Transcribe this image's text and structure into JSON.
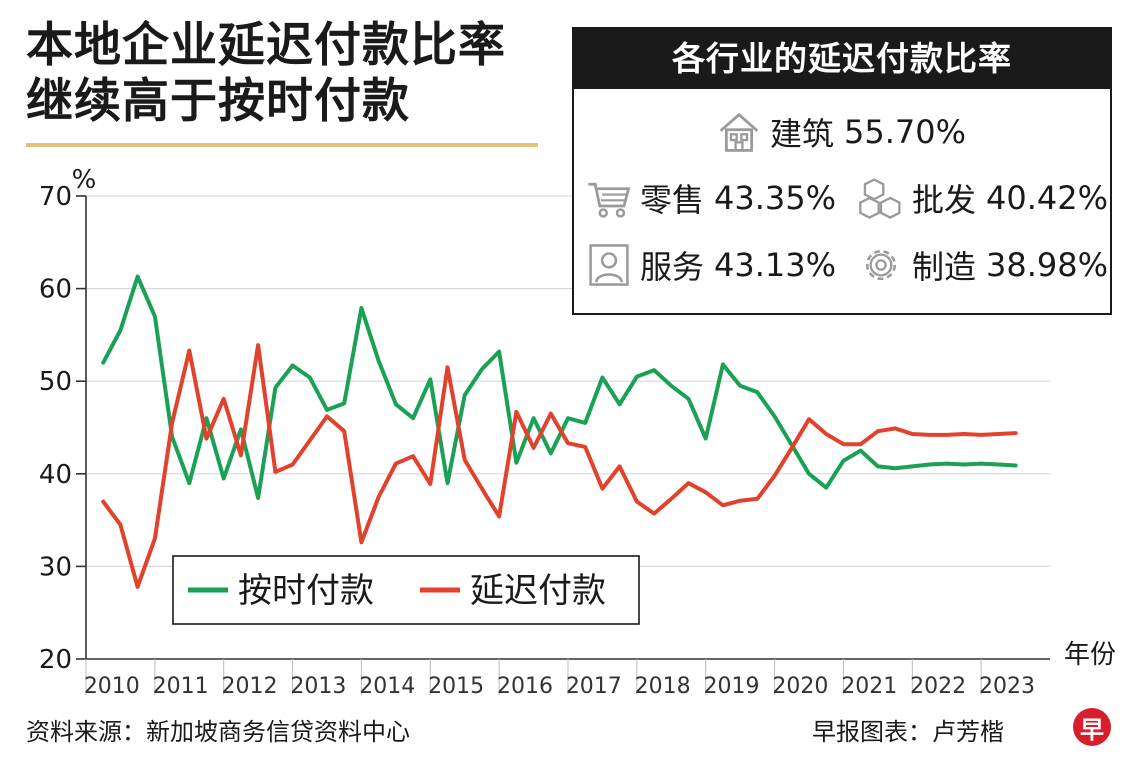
{
  "title": {
    "line1": "本地企业延迟付款比率",
    "line2": "继续高于按时付款"
  },
  "infobox": {
    "title": "各行业的延迟付款比率",
    "industries": [
      {
        "name": "建筑",
        "value": "55.70%",
        "icon": "house-icon"
      },
      {
        "name": "零售",
        "value": "43.35%",
        "icon": "shopping-cart-icon"
      },
      {
        "name": "批发",
        "value": "40.42%",
        "icon": "boxes-icon"
      },
      {
        "name": "服务",
        "value": "43.13%",
        "icon": "person-icon"
      },
      {
        "name": "制造",
        "value": "38.98%",
        "icon": "gear-icon"
      }
    ]
  },
  "source": "资料来源：新加坡商务信贷资料中心",
  "credit": "早报图表：卢芳楷",
  "logo_text": "早",
  "colors": {
    "on_time": "#1aa155",
    "late": "#e2412c",
    "grid": "#d9d9d9",
    "axis": "#333333"
  },
  "chart_data": {
    "type": "line",
    "ylabel": "%",
    "xlabel": "年份",
    "ylim": [
      20,
      70
    ],
    "yticks": [
      20,
      30,
      40,
      50,
      60,
      70
    ],
    "xlim": [
      2009.75,
      2023.75
    ],
    "year_labels": [
      "2010",
      "2011",
      "2012",
      "2013",
      "2014",
      "2015",
      "2016",
      "2017",
      "2018",
      "2019",
      "2020",
      "2021",
      "2022",
      "2023"
    ],
    "legend": "bottom-left",
    "series": [
      {
        "name": "按时付款",
        "color": "#1aa155",
        "x": [
          2010.0,
          2010.25,
          2010.5,
          2010.75,
          2011.0,
          2011.25,
          2011.5,
          2011.75,
          2012.0,
          2012.25,
          2012.5,
          2012.75,
          2013.0,
          2013.25,
          2013.5,
          2013.75,
          2014.0,
          2014.25,
          2014.5,
          2014.75,
          2015.0,
          2015.25,
          2015.5,
          2015.75,
          2016.0,
          2016.25,
          2016.5,
          2016.75,
          2017.0,
          2017.25,
          2017.5,
          2017.75,
          2018.0,
          2018.25,
          2018.5,
          2018.75,
          2019.0,
          2019.25,
          2019.5,
          2019.75,
          2020.0,
          2020.25,
          2020.5,
          2020.75,
          2021.0,
          2021.25,
          2021.5,
          2021.75,
          2022.0,
          2022.25,
          2022.5,
          2022.75,
          2023.0,
          2023.25
        ],
        "y": [
          52.0,
          55.5,
          61.3,
          57.0,
          44.0,
          39.0,
          46.0,
          39.5,
          44.8,
          37.4,
          49.3,
          51.7,
          50.4,
          46.9,
          47.6,
          57.9,
          52.2,
          47.5,
          46.0,
          50.2,
          39.0,
          48.5,
          51.3,
          53.2,
          41.2,
          46.0,
          42.2,
          46.0,
          45.5,
          50.4,
          47.5,
          50.5,
          51.2,
          49.5,
          48.1,
          43.8,
          51.8,
          49.5,
          48.8,
          46.2,
          43.1,
          40.0,
          38.5,
          41.4,
          42.5,
          40.8,
          40.6,
          40.8,
          41.0,
          41.1,
          41.0,
          41.1,
          41.0,
          40.9
        ]
      },
      {
        "name": "延迟付款",
        "color": "#e2412c",
        "x": [
          2010.0,
          2010.25,
          2010.5,
          2010.75,
          2011.0,
          2011.25,
          2011.5,
          2011.75,
          2012.0,
          2012.25,
          2012.5,
          2012.75,
          2013.0,
          2013.25,
          2013.5,
          2013.75,
          2014.0,
          2014.25,
          2014.5,
          2014.75,
          2015.0,
          2015.25,
          2015.5,
          2015.75,
          2016.0,
          2016.25,
          2016.5,
          2016.75,
          2017.0,
          2017.25,
          2017.5,
          2017.75,
          2018.0,
          2018.25,
          2018.5,
          2018.75,
          2019.0,
          2019.25,
          2019.5,
          2019.75,
          2020.0,
          2020.25,
          2020.5,
          2020.75,
          2021.0,
          2021.25,
          2021.5,
          2021.75,
          2022.0,
          2022.25,
          2022.5,
          2022.75,
          2023.0,
          2023.25
        ],
        "y": [
          37.0,
          34.5,
          27.8,
          33.0,
          45.5,
          53.3,
          43.8,
          48.1,
          42.0,
          53.9,
          40.2,
          41.0,
          43.6,
          46.2,
          44.6,
          32.6,
          37.5,
          41.1,
          41.9,
          38.9,
          51.5,
          41.5,
          38.4,
          35.4,
          46.7,
          42.8,
          46.5,
          43.3,
          42.9,
          38.4,
          40.8,
          37.0,
          35.7,
          37.3,
          39.0,
          38.0,
          36.6,
          37.1,
          37.3,
          39.8,
          42.8,
          45.9,
          44.3,
          43.2,
          43.2,
          44.6,
          44.9,
          44.3,
          44.2,
          44.2,
          44.3,
          44.2,
          44.3,
          44.4
        ]
      }
    ]
  }
}
